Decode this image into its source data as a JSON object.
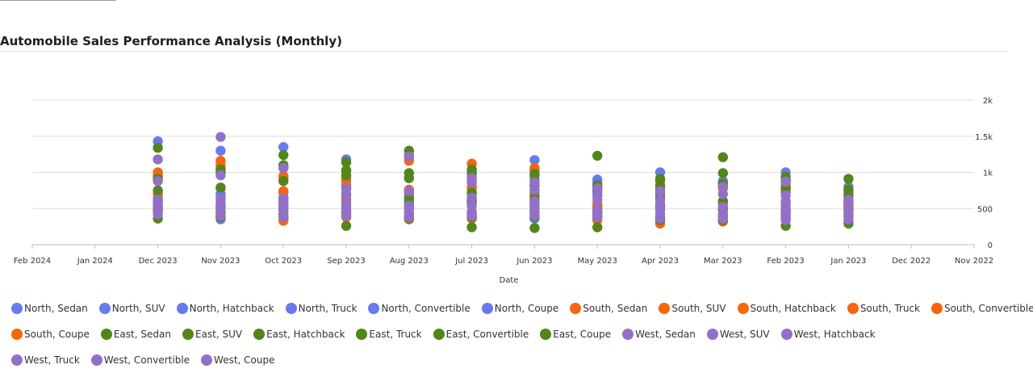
{
  "chart_data": {
    "type": "scatter",
    "title": "Automobile Sales Performance Analysis (Monthly)",
    "xlabel": "Date",
    "ylabel": "",
    "x_ticks": [
      "Feb 2024",
      "Jan 2024",
      "Dec 2023",
      "Nov 2023",
      "Oct 2023",
      "Sep 2023",
      "Aug 2023",
      "Jul 2023",
      "Jun 2023",
      "May 2023",
      "Apr 2023",
      "Mar 2023",
      "Feb 2023",
      "Jan 2023",
      "Dec 2022",
      "Nov 2022"
    ],
    "y_ticks": [
      "0",
      "500",
      "1k",
      "1.5k",
      "2k"
    ],
    "ylim": [
      0,
      2000
    ],
    "x_reversed": true,
    "grid": "horizontal",
    "legend_position": "bottom",
    "colors": {
      "North": "#6979ee",
      "South": "#f6660e",
      "East": "#52861b",
      "West": "#9370c8"
    },
    "months": [
      "Dec 2023",
      "Nov 2023",
      "Oct 2023",
      "Sep 2023",
      "Aug 2023",
      "Jul 2023",
      "Jun 2023",
      "May 2023",
      "Apr 2023",
      "Mar 2023",
      "Feb 2023",
      "Jan 2023"
    ],
    "series": [
      {
        "name": "North, Sedan",
        "values": [
          1430,
          1300,
          1350,
          1180,
          1200,
          1000,
          1170,
          900,
          1000,
          880,
          1000,
          800
        ]
      },
      {
        "name": "North, SUV",
        "values": [
          700,
          780,
          720,
          880,
          920,
          880,
          900,
          850,
          870,
          860,
          900,
          760
        ]
      },
      {
        "name": "North, Hatchback",
        "values": [
          650,
          700,
          650,
          770,
          680,
          700,
          680,
          780,
          780,
          600,
          720,
          560
        ]
      },
      {
        "name": "North, Truck",
        "values": [
          600,
          640,
          570,
          620,
          600,
          620,
          570,
          720,
          700,
          500,
          600,
          720
        ]
      },
      {
        "name": "North, Convertible",
        "values": [
          520,
          560,
          520,
          540,
          520,
          560,
          480,
          540,
          540,
          420,
          460,
          500
        ]
      },
      {
        "name": "North, Coupe",
        "values": [
          460,
          350,
          380,
          460,
          430,
          420,
          360,
          440,
          360,
          380,
          380,
          330
        ]
      },
      {
        "name": "South, Sedan",
        "values": [
          1000,
          1160,
          950,
          1020,
          1240,
          1120,
          1060,
          800,
          880,
          840,
          830,
          670
        ]
      },
      {
        "name": "South, SUV",
        "values": [
          960,
          1100,
          920,
          920,
          1160,
          880,
          1030,
          560,
          830,
          790,
          790,
          600
        ]
      },
      {
        "name": "South, Hatchback",
        "values": [
          960,
          1060,
          740,
          820,
          760,
          800,
          720,
          530,
          720,
          780,
          760,
          560
        ]
      },
      {
        "name": "South, Truck",
        "values": [
          940,
          1000,
          650,
          640,
          720,
          780,
          620,
          520,
          620,
          560,
          560,
          500
        ]
      },
      {
        "name": "South, Convertible",
        "values": [
          910,
          460,
          360,
          420,
          400,
          430,
          520,
          380,
          310,
          330,
          380,
          460
        ]
      },
      {
        "name": "South, Coupe",
        "values": [
          700,
          390,
          330,
          380,
          350,
          360,
          450,
          340,
          290,
          320,
          360,
          490
        ]
      },
      {
        "name": "East, Sedan",
        "values": [
          1340,
          1040,
          1240,
          1140,
          1300,
          1040,
          980,
          1230,
          910,
          1210,
          940,
          910
        ]
      },
      {
        "name": "East, SUV",
        "values": [
          910,
          1000,
          1100,
          1030,
          990,
          980,
          960,
          820,
          800,
          990,
          880,
          760
        ]
      },
      {
        "name": "East, Hatchback",
        "values": [
          750,
          790,
          1060,
          960,
          920,
          720,
          820,
          760,
          660,
          840,
          780,
          680
        ]
      },
      {
        "name": "East, Truck",
        "values": [
          530,
          530,
          880,
          700,
          640,
          600,
          650,
          480,
          520,
          600,
          470,
          540
        ]
      },
      {
        "name": "East, Convertible",
        "values": [
          480,
          430,
          500,
          440,
          560,
          380,
          380,
          410,
          380,
          480,
          420,
          400
        ]
      },
      {
        "name": "East, Coupe",
        "values": [
          360,
          380,
          420,
          260,
          360,
          240,
          230,
          240,
          340,
          340,
          260,
          290
        ]
      },
      {
        "name": "West, Sedan",
        "values": [
          1180,
          1490,
          1060,
          780,
          1220,
          920,
          860,
          780,
          740,
          800,
          870,
          620
        ]
      },
      {
        "name": "West, SUV",
        "values": [
          880,
          960,
          640,
          690,
          740,
          860,
          760,
          680,
          620,
          700,
          680,
          580
        ]
      },
      {
        "name": "West, Hatchback",
        "values": [
          620,
          620,
          600,
          580,
          540,
          650,
          600,
          620,
          560,
          520,
          560,
          540
        ]
      },
      {
        "name": "West, Truck",
        "values": [
          560,
          560,
          540,
          500,
          500,
          540,
          520,
          490,
          480,
          420,
          500,
          470
        ]
      },
      {
        "name": "West, Convertible",
        "values": [
          500,
          480,
          470,
          460,
          450,
          460,
          440,
          450,
          420,
          400,
          420,
          420
        ]
      },
      {
        "name": "West, Coupe",
        "values": [
          420,
          400,
          380,
          400,
          380,
          400,
          400,
          380,
          360,
          360,
          340,
          350
        ]
      }
    ]
  }
}
